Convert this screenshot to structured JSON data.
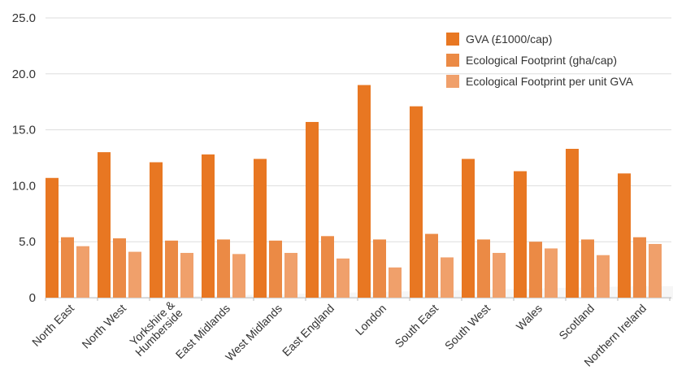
{
  "chart_data": {
    "type": "bar",
    "categories": [
      [
        "North East"
      ],
      [
        "North West"
      ],
      [
        "Yorkshire &",
        "Humberside"
      ],
      [
        "East Midlands"
      ],
      [
        "West Midlands"
      ],
      [
        "East England"
      ],
      [
        "London"
      ],
      [
        "South East"
      ],
      [
        "South West"
      ],
      [
        "Wales"
      ],
      [
        "Scotland"
      ],
      [
        "Northern Ireland"
      ]
    ],
    "series": [
      {
        "name": "GVA (£1000/cap)",
        "color": "#E87722",
        "values": [
          10.7,
          13.0,
          12.1,
          12.8,
          12.4,
          15.7,
          19.0,
          17.1,
          12.4,
          11.3,
          13.3,
          11.1
        ]
      },
      {
        "name": "Ecological Footprint (gha/cap)",
        "color": "#EB8A45",
        "values": [
          5.4,
          5.3,
          5.1,
          5.2,
          5.1,
          5.5,
          5.2,
          5.7,
          5.2,
          5.0,
          5.2,
          5.4
        ]
      },
      {
        "name": "Ecological Footprint per unit GVA",
        "color": "#F0A06B",
        "values": [
          4.6,
          4.1,
          4.0,
          3.9,
          4.0,
          3.5,
          2.7,
          3.6,
          4.0,
          4.4,
          3.8,
          4.8
        ]
      }
    ],
    "yticks": [
      "0",
      "5.0",
      "10.0",
      "15.0",
      "20.0",
      "25.0"
    ],
    "ylim": [
      0,
      25
    ],
    "grid": "horizontal",
    "legend_position": "top-right",
    "title": "",
    "xlabel": "",
    "ylabel": ""
  }
}
